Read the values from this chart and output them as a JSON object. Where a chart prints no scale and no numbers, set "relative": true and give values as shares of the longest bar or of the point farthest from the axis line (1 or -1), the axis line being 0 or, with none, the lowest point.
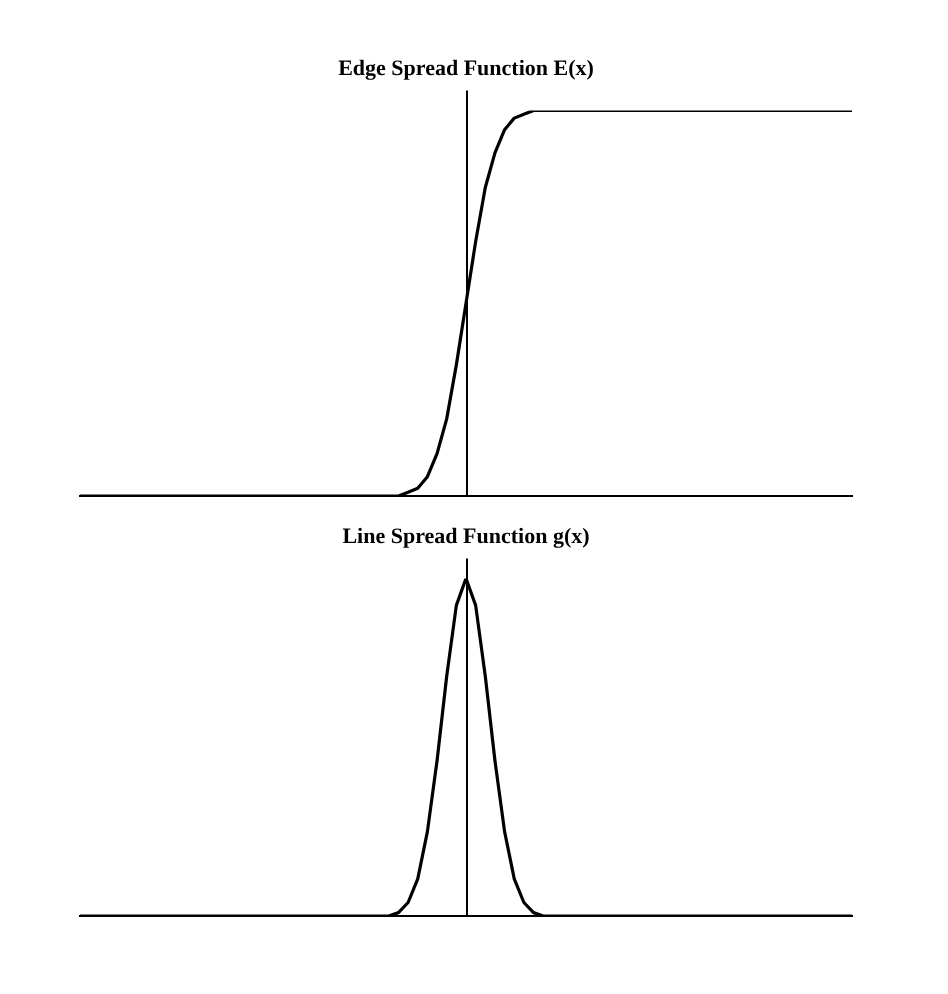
{
  "chart_data": [
    {
      "type": "line",
      "title": "Edge Spread Function E(x)",
      "relative": true,
      "tick_labels": false,
      "grid": false,
      "legend": false,
      "marker": "none",
      "line_style": "solid",
      "categories": [
        null,
        null,
        null,
        null,
        null,
        null,
        null,
        null,
        null,
        null,
        null,
        null,
        null,
        null,
        null,
        null,
        null,
        null,
        null,
        null,
        null,
        null,
        null,
        null,
        null,
        null,
        null,
        null,
        null,
        null,
        null,
        null,
        null,
        null,
        null,
        null,
        null,
        null,
        null,
        null,
        null,
        null,
        null,
        null,
        null,
        null,
        null,
        null,
        null,
        null,
        null,
        null,
        null,
        null,
        null,
        null,
        null,
        null,
        null,
        null,
        null,
        null,
        null,
        null,
        null,
        null,
        null,
        null,
        null,
        null,
        null,
        null,
        null,
        null,
        null,
        null,
        null,
        null,
        null,
        null,
        null
      ],
      "series": [
        {
          "color": "#000000",
          "values": [
            0,
            0,
            0,
            0,
            0,
            0,
            0,
            0,
            0,
            0,
            0,
            0,
            0,
            0,
            0,
            0,
            0,
            0,
            0,
            0,
            0,
            0,
            0,
            0,
            0,
            0,
            0,
            0,
            0,
            0,
            0,
            0,
            0,
            0,
            0.01,
            0.02,
            0.05,
            0.11,
            0.2,
            0.34,
            0.5,
            0.66,
            0.8,
            0.89,
            0.95,
            0.98,
            0.99,
            1,
            1,
            1,
            1,
            1,
            1,
            1,
            1,
            1,
            1,
            1,
            1,
            1,
            1,
            1,
            1,
            1,
            1,
            1,
            1,
            1,
            1,
            1,
            1,
            1,
            1,
            1,
            1,
            1,
            1,
            1,
            1,
            1,
            1
          ]
        }
      ]
    },
    {
      "type": "line",
      "title": "Line Spread Function g(x)",
      "relative": true,
      "tick_labels": false,
      "grid": false,
      "legend": false,
      "marker": "none",
      "line_style": "solid",
      "categories": [
        null,
        null,
        null,
        null,
        null,
        null,
        null,
        null,
        null,
        null,
        null,
        null,
        null,
        null,
        null,
        null,
        null,
        null,
        null,
        null,
        null,
        null,
        null,
        null,
        null,
        null,
        null,
        null,
        null,
        null,
        null,
        null,
        null,
        null,
        null,
        null,
        null,
        null,
        null,
        null,
        null,
        null,
        null,
        null,
        null,
        null,
        null,
        null,
        null,
        null,
        null,
        null,
        null,
        null,
        null,
        null,
        null,
        null,
        null,
        null,
        null,
        null,
        null,
        null,
        null,
        null,
        null,
        null,
        null,
        null,
        null,
        null,
        null,
        null,
        null,
        null,
        null,
        null,
        null,
        null,
        null
      ],
      "series": [
        {
          "color": "#000000",
          "values": [
            0,
            0,
            0,
            0,
            0,
            0,
            0,
            0,
            0,
            0,
            0,
            0,
            0,
            0,
            0,
            0,
            0,
            0,
            0,
            0,
            0,
            0,
            0,
            0,
            0,
            0,
            0,
            0,
            0,
            0,
            0,
            0,
            0,
            0.01,
            0.04,
            0.11,
            0.25,
            0.46,
            0.71,
            0.92,
            1,
            0.92,
            0.71,
            0.46,
            0.25,
            0.11,
            0.04,
            0.01,
            0,
            0,
            0,
            0,
            0,
            0,
            0,
            0,
            0,
            0,
            0,
            0,
            0,
            0,
            0,
            0,
            0,
            0,
            0,
            0,
            0,
            0,
            0,
            0,
            0,
            0,
            0,
            0,
            0,
            0,
            0,
            0,
            0
          ]
        }
      ]
    }
  ]
}
